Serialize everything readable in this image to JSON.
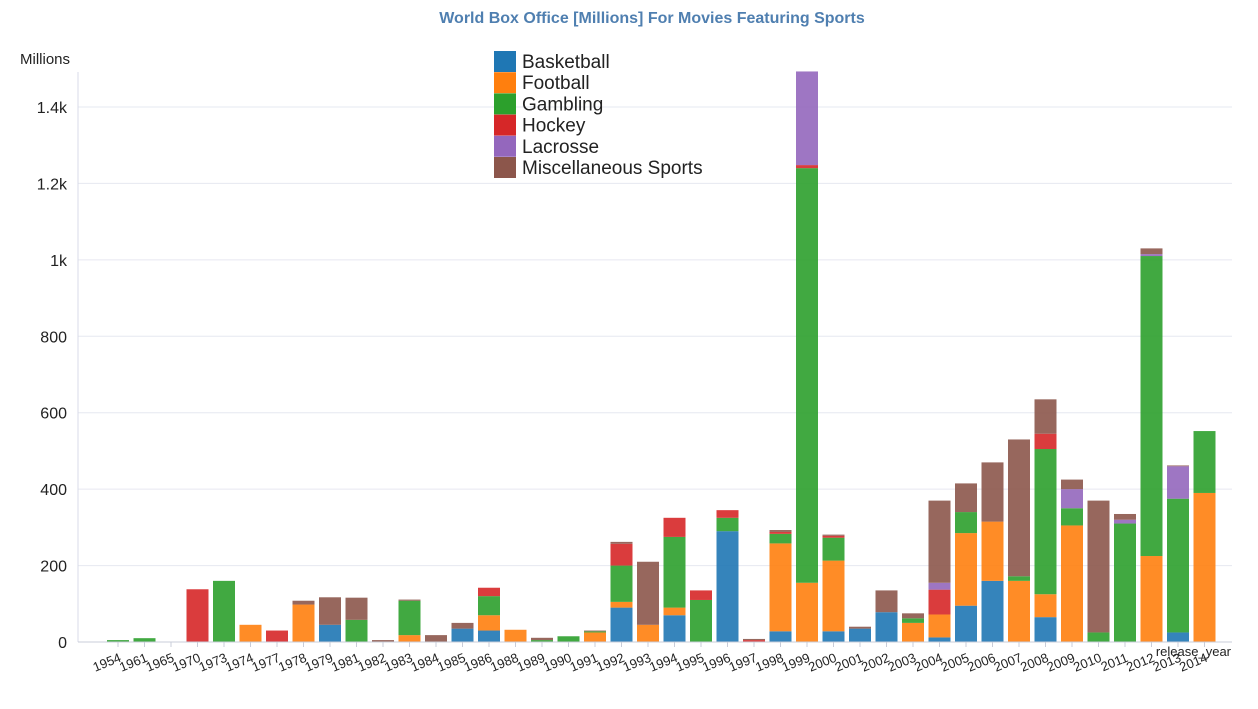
{
  "chart_data": {
    "type": "bar",
    "stacked": true,
    "title": "World Box Office [Millions] For Movies Featuring Sports",
    "ylabel": "Millions",
    "xlabel": "release_year",
    "ylim": [
      0,
      1500
    ],
    "yticks": [
      0,
      200,
      400,
      600,
      800,
      1000,
      1200,
      1400
    ],
    "ytick_labels": [
      "0",
      "200",
      "400",
      "600",
      "800",
      "1k",
      "1.2k",
      "1.4k"
    ],
    "grid": true,
    "legend_position": "top-center",
    "categories": [
      "1954",
      "1961",
      "1965",
      "1970",
      "1973",
      "1974",
      "1977",
      "1978",
      "1979",
      "1981",
      "1982",
      "1983",
      "1984",
      "1985",
      "1986",
      "1988",
      "1989",
      "1990",
      "1991",
      "1992",
      "1993",
      "1994",
      "1995",
      "1996",
      "1997",
      "1998",
      "1999",
      "2000",
      "2001",
      "2002",
      "2003",
      "2004",
      "2005",
      "2006",
      "2007",
      "2008",
      "2009",
      "2010",
      "2011",
      "2012",
      "2013",
      "2014"
    ],
    "series": [
      {
        "name": "Basketball",
        "color": "#1f77b4",
        "values": [
          0,
          0,
          0,
          0,
          0,
          0,
          0,
          0,
          45,
          0,
          0,
          0,
          0,
          35,
          30,
          0,
          0,
          0,
          0,
          90,
          0,
          70,
          0,
          290,
          0,
          28,
          0,
          28,
          35,
          78,
          0,
          12,
          95,
          160,
          0,
          65,
          0,
          0,
          0,
          0,
          25,
          0
        ]
      },
      {
        "name": "Football",
        "color": "#ff7f0e",
        "values": [
          0,
          0,
          0,
          0,
          0,
          45,
          0,
          98,
          0,
          0,
          0,
          18,
          0,
          0,
          40,
          32,
          0,
          0,
          25,
          15,
          45,
          20,
          0,
          0,
          0,
          230,
          155,
          185,
          0,
          0,
          50,
          60,
          190,
          155,
          160,
          60,
          305,
          0,
          0,
          225,
          0,
          390
        ]
      },
      {
        "name": "Gambling",
        "color": "#2ca02c",
        "values": [
          5,
          10,
          0,
          0,
          160,
          0,
          0,
          0,
          0,
          58,
          0,
          90,
          0,
          0,
          50,
          0,
          5,
          15,
          3,
          95,
          0,
          185,
          110,
          35,
          0,
          25,
          1085,
          60,
          0,
          0,
          12,
          0,
          55,
          0,
          12,
          380,
          45,
          25,
          310,
          785,
          350,
          162
        ]
      },
      {
        "name": "Hockey",
        "color": "#d62728",
        "values": [
          0,
          0,
          0,
          138,
          0,
          0,
          30,
          0,
          0,
          0,
          0,
          0,
          0,
          0,
          22,
          0,
          0,
          0,
          0,
          57,
          0,
          50,
          25,
          20,
          5,
          5,
          8,
          5,
          0,
          0,
          0,
          65,
          0,
          0,
          0,
          40,
          0,
          0,
          0,
          0,
          0,
          0
        ]
      },
      {
        "name": "Lacrosse",
        "color": "#9467bd",
        "values": [
          0,
          0,
          0,
          0,
          0,
          0,
          0,
          0,
          0,
          0,
          0,
          0,
          0,
          0,
          0,
          0,
          0,
          0,
          0,
          0,
          0,
          0,
          0,
          0,
          0,
          0,
          245,
          0,
          0,
          0,
          0,
          18,
          0,
          0,
          0,
          0,
          50,
          0,
          10,
          5,
          85,
          0
        ]
      },
      {
        "name": "Miscellaneous Sports",
        "color": "#8c564b",
        "values": [
          0,
          0,
          0,
          0,
          0,
          0,
          0,
          10,
          72,
          58,
          5,
          3,
          18,
          15,
          0,
          0,
          6,
          0,
          2,
          5,
          165,
          0,
          0,
          0,
          3,
          5,
          0,
          3,
          5,
          57,
          13,
          215,
          75,
          155,
          358,
          90,
          25,
          345,
          15,
          15,
          2,
          0
        ]
      }
    ]
  }
}
